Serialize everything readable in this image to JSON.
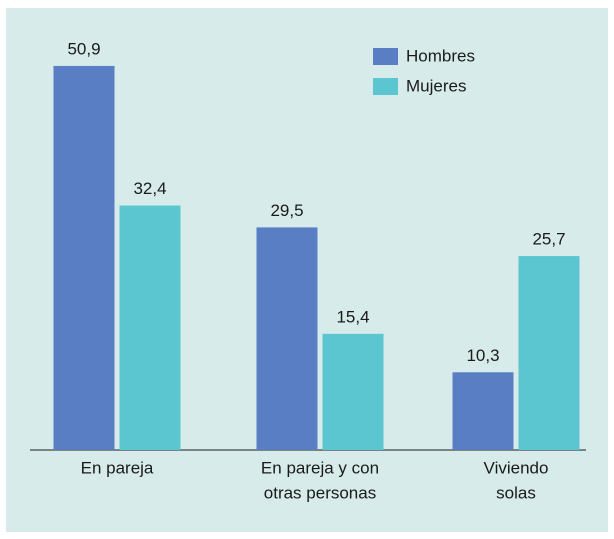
{
  "chart_data": {
    "type": "bar",
    "categories": [
      [
        "En pareja"
      ],
      [
        "En pareja y con",
        "otras personas"
      ],
      [
        "Viviendo",
        "solas"
      ]
    ],
    "series": [
      {
        "name": "Hombres",
        "color": "#5a7ec4",
        "values": [
          50.9,
          29.5,
          10.3
        ],
        "value_labels": [
          "50,9",
          "29,5",
          "10,3"
        ]
      },
      {
        "name": "Mujeres",
        "color": "#5bc6cf",
        "values": [
          32.4,
          15.4,
          25.7
        ],
        "value_labels": [
          "32,4",
          "15,4",
          "25,7"
        ]
      }
    ],
    "ylim": [
      0,
      55
    ]
  }
}
